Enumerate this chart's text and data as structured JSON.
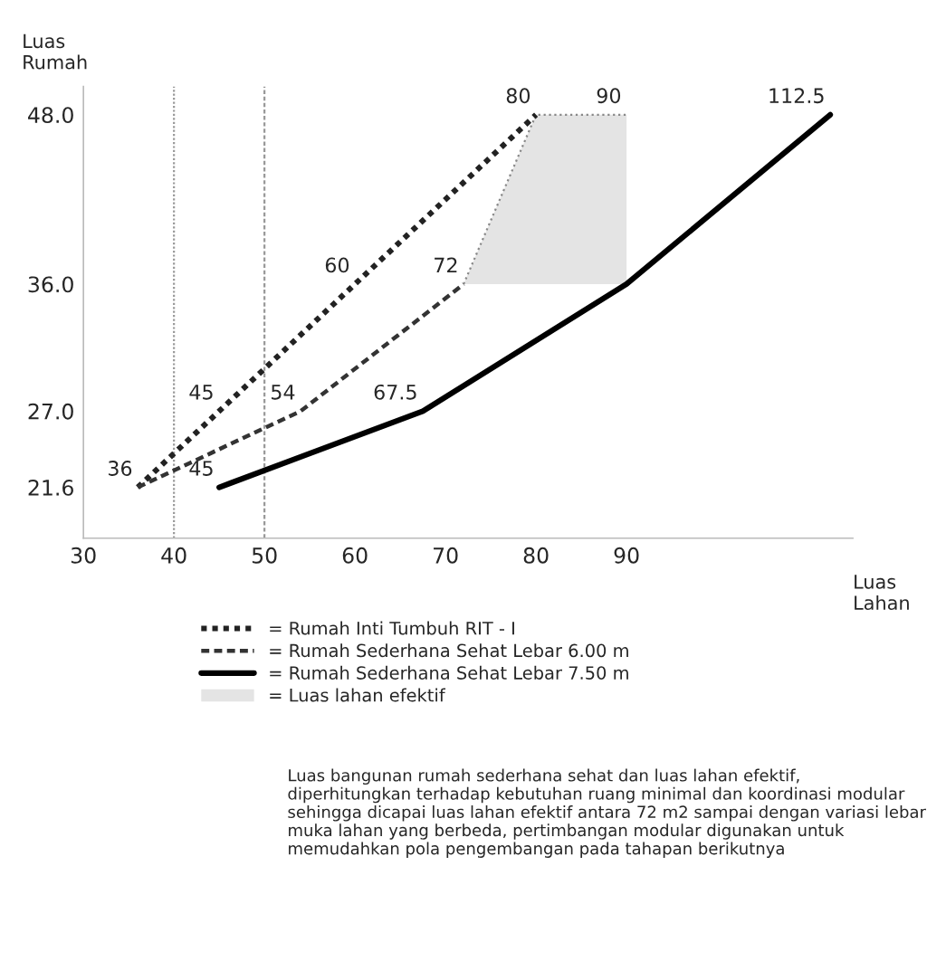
{
  "chart_data": {
    "type": "line",
    "xlabel": "Luas\nLahan",
    "ylabel": "Luas\nRumah",
    "xlim": [
      30,
      115
    ],
    "xticks": [
      30,
      40,
      50,
      60,
      70,
      80,
      90
    ],
    "ylim": [
      18,
      50
    ],
    "yticks": [
      {
        "value": 21.6,
        "label": "21.6"
      },
      {
        "value": 27,
        "label": "27.0"
      },
      {
        "value": 36,
        "label": "36.0"
      },
      {
        "value": 48,
        "label": "48.0"
      }
    ],
    "grid": false,
    "legend": "bottom",
    "series": [
      {
        "name": "= Rumah Inti Tumbuh RIT - I",
        "color": "#222222",
        "line_style": "dotted",
        "x": [
          36,
          45,
          60,
          80
        ],
        "values": [
          21.6,
          27,
          36,
          48
        ]
      },
      {
        "name": "= Rumah Sederhana Sehat Lebar 6.00 m",
        "color": "#333333",
        "line_style": "dashed",
        "x": [
          36,
          54,
          72
        ],
        "values": [
          21.6,
          27,
          36
        ]
      },
      {
        "name": "= Rumah Sederhana Sehat Lebar 7.50 m",
        "color": "#000000",
        "line_style": "solid",
        "x": [
          45,
          67.5,
          90,
          112.5
        ],
        "values": [
          21.6,
          27,
          36,
          48
        ]
      },
      {
        "name": "= Luas lahan efektif",
        "type": "area",
        "color": "#e4e4e4",
        "x": [
          72,
          80,
          90
        ],
        "values": [
          36,
          48,
          48
        ]
      }
    ],
    "ref_lines": [
      {
        "axis": "x",
        "value": 40,
        "line_style": "dotted",
        "color": "#999999"
      },
      {
        "axis": "x",
        "value": 50,
        "line_style": "dashed",
        "color": "#999999"
      }
    ],
    "annotations": [
      {
        "text": "36",
        "x": 36,
        "y": 21.6
      },
      {
        "text": "45",
        "x": 45,
        "y": 27
      },
      {
        "text": "60",
        "x": 60,
        "y": 36
      },
      {
        "text": "80",
        "x": 80,
        "y": 48
      },
      {
        "text": "54",
        "x": 54,
        "y": 27
      },
      {
        "text": "72",
        "x": 72,
        "y": 36
      },
      {
        "text": "45",
        "x": 45,
        "y": 21.6
      },
      {
        "text": "67.5",
        "x": 67.5,
        "y": 27
      },
      {
        "text": "90",
        "x": 90,
        "y": 48
      },
      {
        "text": "112.5",
        "x": 112.5,
        "y": 48
      },
      "Luas bangunan rumah sederhana sehat dan luas lahan efektif, diperhitungkan terhadap kebutuhan ruang minimal dan koordinasi modular sehingga dicapai luas lahan efektif antara 72 m2 sampai dengan variasi lebar muka lahan yang berbeda, pertimbangan modular digunakan untuk memudahkan pola pengembangan pada tahapan berikutnya"
    ]
  }
}
